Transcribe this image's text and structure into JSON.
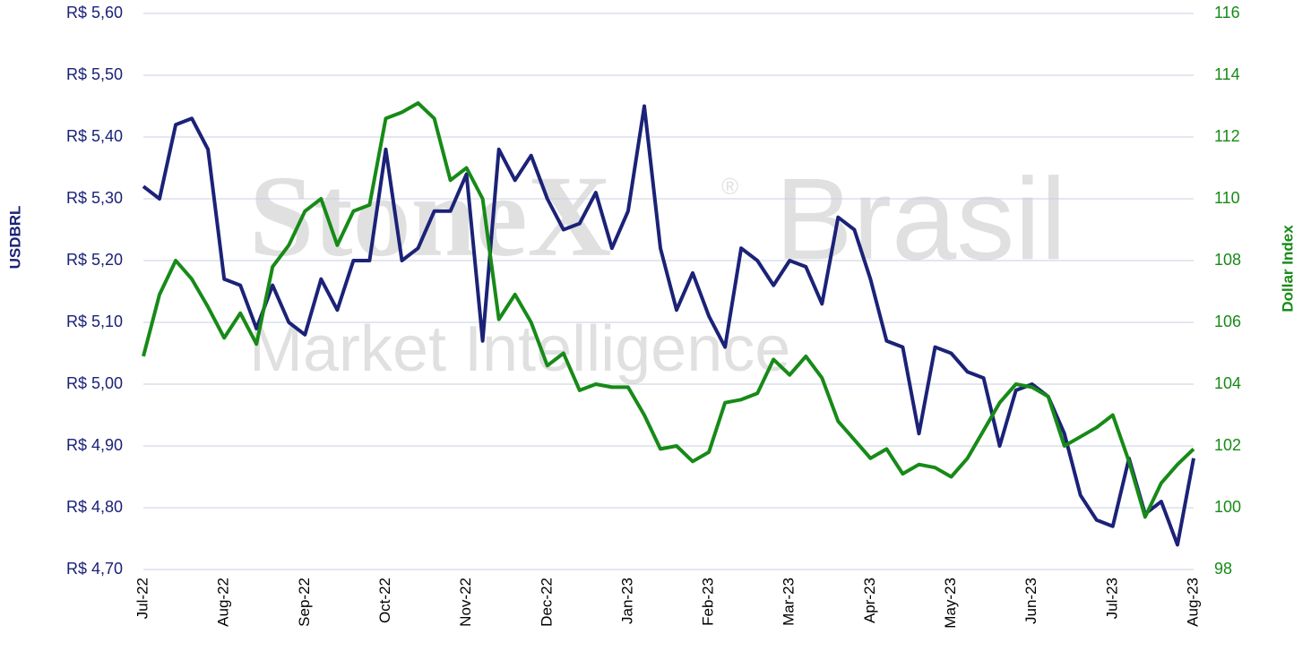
{
  "chart_data": {
    "type": "line",
    "watermark": [
      "StoneX",
      "®",
      "Brasil",
      "Market Intelligence"
    ],
    "ylabel": "USDBRL",
    "y2label": "Dollar Index",
    "categories": [
      "Jul-22",
      null,
      null,
      null,
      null,
      "Aug-22",
      null,
      null,
      null,
      null,
      "Sep-22",
      null,
      null,
      null,
      null,
      "Oct-22",
      null,
      null,
      null,
      null,
      "Nov-22",
      null,
      null,
      null,
      null,
      "Dec-22",
      null,
      null,
      null,
      null,
      "Jan-23",
      null,
      null,
      null,
      null,
      "Feb-23",
      null,
      null,
      null,
      null,
      "Mar-23",
      null,
      null,
      null,
      null,
      "Apr-23",
      null,
      null,
      null,
      null,
      "May-23",
      null,
      null,
      null,
      null,
      "Jun-23",
      null,
      null,
      null,
      null,
      "Jul-23",
      null,
      null,
      null,
      null,
      "Aug-23"
    ],
    "series": [
      {
        "name": "USDBRL",
        "color": "#1b2277",
        "axis": "y",
        "values": [
          5.32,
          5.3,
          5.42,
          5.43,
          5.38,
          5.17,
          5.16,
          5.09,
          5.16,
          5.1,
          5.08,
          5.17,
          5.12,
          5.2,
          5.2,
          5.38,
          5.2,
          5.22,
          5.28,
          5.28,
          5.34,
          5.07,
          5.38,
          5.33,
          5.37,
          5.3,
          5.25,
          5.26,
          5.31,
          5.22,
          5.28,
          5.45,
          5.22,
          5.12,
          5.18,
          5.11,
          5.06,
          5.22,
          5.2,
          5.16,
          5.2,
          5.19,
          5.13,
          5.27,
          5.25,
          5.17,
          5.07,
          5.06,
          4.92,
          5.06,
          5.05,
          5.02,
          5.01,
          4.9,
          4.99,
          5.0,
          4.98,
          4.92,
          4.82,
          4.78,
          4.77,
          4.88,
          4.79,
          4.81,
          4.74,
          4.88
        ]
      },
      {
        "name": "Dollar Index",
        "color": "#178a17",
        "axis": "y2",
        "values": [
          104.9,
          106.9,
          108.0,
          107.4,
          106.5,
          105.5,
          106.3,
          105.3,
          107.8,
          108.5,
          109.6,
          110.0,
          108.5,
          109.6,
          109.8,
          112.6,
          112.8,
          113.1,
          112.6,
          110.6,
          111.0,
          110.0,
          106.1,
          106.9,
          106.0,
          104.6,
          105.0,
          103.8,
          104.0,
          103.9,
          103.9,
          103.0,
          101.9,
          102.0,
          101.5,
          101.8,
          103.4,
          103.5,
          103.7,
          104.8,
          104.3,
          104.9,
          104.2,
          102.8,
          102.2,
          101.6,
          101.9,
          101.1,
          101.4,
          101.3,
          101.0,
          101.6,
          102.5,
          103.4,
          104.0,
          103.9,
          103.6,
          102.0,
          102.3,
          102.6,
          103.0,
          101.5,
          99.7,
          100.8,
          101.4,
          101.9
        ]
      }
    ],
    "ylim": [
      4.7,
      5.6
    ],
    "yticks": [
      {
        "value": 4.7,
        "label": "R$ 4,70"
      },
      {
        "value": 4.8,
        "label": "R$ 4,80"
      },
      {
        "value": 4.9,
        "label": "R$ 4,90"
      },
      {
        "value": 5.0,
        "label": "R$ 5,00"
      },
      {
        "value": 5.1,
        "label": "R$ 5,10"
      },
      {
        "value": 5.2,
        "label": "R$ 5,20"
      },
      {
        "value": 5.3,
        "label": "R$ 5,30"
      },
      {
        "value": 5.4,
        "label": "R$ 5,40"
      },
      {
        "value": 5.5,
        "label": "R$ 5,50"
      },
      {
        "value": 5.6,
        "label": "R$ 5,60"
      }
    ],
    "y2lim": [
      98,
      116
    ],
    "y2ticks": [
      98,
      100,
      102,
      104,
      106,
      108,
      110,
      112,
      114,
      116
    ],
    "grid": true
  }
}
